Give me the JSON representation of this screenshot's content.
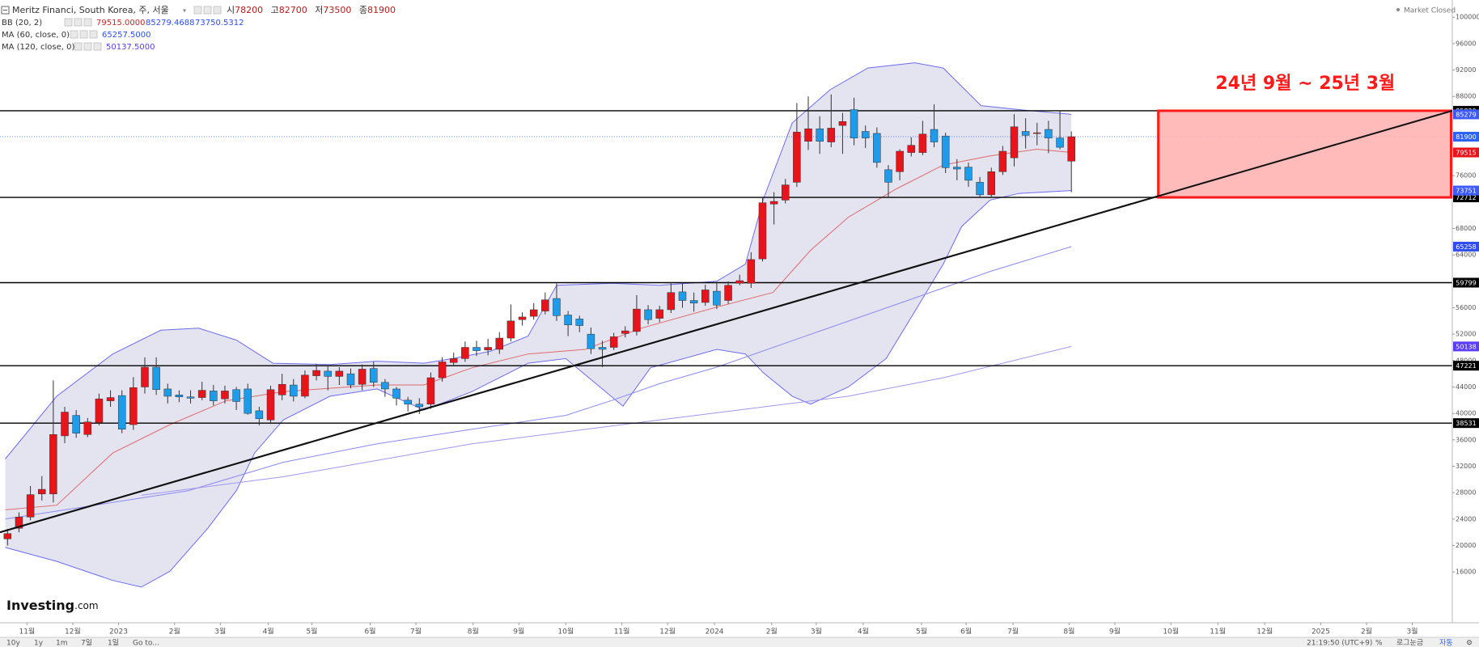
{
  "chart_data": {
    "type": "candlestick",
    "title": "Meritz Financi, South Korea, 주, 서울",
    "ohlc_prefixes": [
      "시",
      "고",
      "저",
      "종"
    ],
    "status": "Market Closed",
    "indicators": [
      {
        "label": "BB (20, 2)",
        "readouts": [
          {
            "value": 79515,
            "label": "79515.0000"
          },
          {
            "value": 85279.4688,
            "label": "85279.4688"
          },
          {
            "value": 73750.5312,
            "label": "73750.5312"
          }
        ]
      },
      {
        "label": "MA (60, close, 0)",
        "readouts": [
          {
            "value": 65257.5,
            "label": "65257.5000"
          }
        ]
      },
      {
        "label": "MA (120, close, 0)",
        "readouts": [
          {
            "value": 50137.5,
            "label": "50137.5000"
          }
        ]
      }
    ],
    "up_color": "#e8141b",
    "down_color": "#1e9be9",
    "x": [
      0,
      1,
      2,
      3,
      4,
      5,
      6,
      7,
      8,
      9,
      10,
      11,
      12,
      13,
      14,
      15,
      16,
      17,
      18,
      19,
      20,
      21,
      22,
      23,
      24,
      25,
      26,
      27,
      28,
      29,
      30,
      31,
      32,
      33,
      34,
      35,
      36,
      37,
      38,
      39,
      40,
      41,
      42,
      43,
      44,
      45,
      46,
      47,
      48,
      49,
      50,
      51,
      52,
      53,
      54,
      55,
      56,
      57,
      58,
      59,
      60,
      61,
      62,
      63,
      64,
      65,
      66,
      67,
      68,
      69,
      70,
      71,
      72,
      73,
      74,
      75,
      76,
      77,
      78,
      79,
      80,
      81,
      82,
      83,
      84,
      85,
      86,
      87,
      88,
      89,
      90,
      91,
      92,
      93
    ],
    "open": [
      21000,
      22600,
      24300,
      27800,
      27800,
      36600,
      39700,
      36800,
      38600,
      41900,
      42700,
      38300,
      44000,
      47000,
      43700,
      42800,
      42500,
      42400,
      43400,
      42200,
      43600,
      43700,
      40400,
      39000,
      42800,
      44300,
      42600,
      45700,
      46400,
      45600,
      46000,
      44400,
      46800,
      44700,
      43700,
      42000,
      41400,
      41400,
      45400,
      47700,
      48300,
      50000,
      49600,
      49700,
      51400,
      54200,
      54700,
      55500,
      57400,
      54900,
      54300,
      52000,
      50000,
      50000,
      52100,
      52400,
      55700,
      54400,
      55700,
      58400,
      57100,
      56800,
      58500,
      57100,
      59700,
      59700,
      63400,
      71700,
      72300,
      75000,
      81200,
      83100,
      81100,
      83600,
      86000,
      82700,
      82400,
      76900,
      76600,
      79500,
      79500,
      83000,
      82000,
      77300,
      77300,
      75000,
      73100,
      76600,
      78700,
      82700,
      82400,
      83000,
      81700,
      78200
    ],
    "high": [
      22500,
      25000,
      29000,
      30500,
      45000,
      41000,
      40500,
      39300,
      43000,
      43500,
      43500,
      45500,
      48500,
      48500,
      44500,
      43500,
      43500,
      44800,
      44300,
      44200,
      44000,
      44500,
      41000,
      44200,
      46000,
      45200,
      46500,
      47500,
      47300,
      47000,
      46800,
      47400,
      47800,
      45200,
      44000,
      42500,
      42300,
      46200,
      48500,
      49200,
      50900,
      51000,
      51300,
      52300,
      56500,
      55300,
      56700,
      58300,
      59700,
      55500,
      54800,
      53000,
      51000,
      52200,
      53200,
      57900,
      56400,
      56300,
      59700,
      59800,
      58300,
      59500,
      59700,
      60000,
      61000,
      64400,
      72700,
      73500,
      75500,
      87000,
      88000,
      85000,
      88300,
      85500,
      87800,
      83600,
      83300,
      77600,
      80000,
      81800,
      84300,
      86800,
      82500,
      78500,
      78000,
      75800,
      77200,
      80500,
      85300,
      84700,
      84000,
      84300,
      85800,
      82700
    ],
    "low": [
      20000,
      22000,
      23800,
      26800,
      26500,
      35500,
      36300,
      36400,
      38200,
      41000,
      37000,
      37500,
      43000,
      42800,
      41500,
      41700,
      41500,
      42000,
      41200,
      41500,
      40500,
      39800,
      38200,
      38400,
      42000,
      41800,
      42300,
      45000,
      43500,
      44300,
      43800,
      43500,
      44000,
      42500,
      41200,
      40300,
      39900,
      40700,
      44800,
      47200,
      47800,
      48700,
      48800,
      49000,
      50900,
      53300,
      54200,
      55000,
      54000,
      51700,
      52300,
      49000,
      47000,
      49600,
      51500,
      51800,
      53500,
      53800,
      55200,
      56000,
      55400,
      56300,
      55800,
      56600,
      59400,
      59000,
      63000,
      68600,
      71800,
      74300,
      79900,
      79300,
      80300,
      79300,
      80600,
      80200,
      77200,
      72700,
      75300,
      78900,
      79100,
      80300,
      76400,
      75300,
      74300,
      72700,
      72700,
      76100,
      77400,
      80100,
      80600,
      79400,
      80000,
      73500
    ],
    "close": [
      21800,
      24300,
      27700,
      28500,
      36800,
      40200,
      37000,
      38700,
      42200,
      42400,
      37600,
      43900,
      47000,
      43600,
      42600,
      42500,
      42300,
      43500,
      41900,
      43400,
      41800,
      40000,
      39200,
      43600,
      44400,
      42600,
      45800,
      46500,
      45600,
      46400,
      44300,
      46700,
      44700,
      43700,
      42300,
      41400,
      41000,
      45400,
      47800,
      48300,
      50000,
      49500,
      50000,
      51400,
      54000,
      54600,
      55700,
      57200,
      54800,
      53400,
      53300,
      49800,
      49700,
      51600,
      52500,
      55800,
      54200,
      55700,
      58300,
      57100,
      56700,
      58700,
      56400,
      59400,
      60100,
      63300,
      71900,
      72100,
      74600,
      82600,
      83100,
      81200,
      83200,
      84200,
      81700,
      81700,
      78000,
      75000,
      79700,
      80600,
      82300,
      81100,
      77200,
      77000,
      75300,
      73100,
      76600,
      79700,
      83400,
      82100,
      82500,
      81700,
      80300,
      81900
    ],
    "bb": {
      "fill": "#e4e4f1",
      "upper": {
        "color": "#6c6cf0",
        "tag_color": "#3d5afe",
        "x": [
          -0.2,
          4.3,
          9.2,
          13.4,
          16.7,
          20.0,
          23.2,
          28.2,
          32.3,
          36.4,
          38.9,
          42.2,
          45.5,
          48.0,
          52.9,
          57.0,
          62.0,
          64.5,
          66.1,
          68.6,
          71.9,
          75.2,
          79.3,
          81.8,
          85.1,
          88.4,
          93
        ],
        "values": [
          33100,
          42600,
          49000,
          52600,
          52900,
          51100,
          47600,
          47400,
          47900,
          47600,
          48300,
          49400,
          51700,
          59400,
          59700,
          59400,
          60000,
          62600,
          72600,
          84000,
          89000,
          92300,
          93100,
          92300,
          86600,
          86000,
          85279
        ]
      },
      "basis": {
        "color": "#e06a6a",
        "tag_color": "#e8141b",
        "x": [
          -0.2,
          4.3,
          9.2,
          14.2,
          19.1,
          24.1,
          32.3,
          36.4,
          40.6,
          45.5,
          50.5,
          55.4,
          62.0,
          66.9,
          70.2,
          73.5,
          77.7,
          81.8,
          85.9,
          90.0,
          93
        ],
        "values": [
          25400,
          26100,
          34000,
          38300,
          41900,
          43300,
          44300,
          44300,
          46900,
          49000,
          49700,
          52900,
          56100,
          58300,
          64700,
          69700,
          74000,
          77600,
          79000,
          80000,
          79515
        ]
      },
      "lower": {
        "color": "#6c6cf0",
        "tag_color": "#3d5afe",
        "x": [
          -0.2,
          4.3,
          9.2,
          11.7,
          14.2,
          17.5,
          20.0,
          21.6,
          24.1,
          28.2,
          32.3,
          36.4,
          40.6,
          45.5,
          48.8,
          53.8,
          56.2,
          62.0,
          64.5,
          66.1,
          68.6,
          70.2,
          73.5,
          76.8,
          79.3,
          81.8,
          83.4,
          85.9,
          88.4,
          93
        ],
        "values": [
          19700,
          17600,
          14700,
          13700,
          16100,
          22600,
          28300,
          34000,
          39000,
          42600,
          43700,
          40500,
          43300,
          47600,
          48300,
          41100,
          46900,
          49700,
          49000,
          46100,
          42600,
          41400,
          44000,
          48300,
          55400,
          62600,
          68300,
          72300,
          73300,
          73751
        ]
      }
    },
    "ma60": {
      "color": "#8a8af2",
      "tag_color": "#2f4cf5",
      "x": [
        -0.2,
        7.6,
        15.8,
        24.1,
        32.3,
        40.6,
        48.8,
        52.9,
        57.0,
        62.0,
        69.4,
        77.7,
        85.9,
        93
      ],
      "values": [
        24000,
        26100,
        28300,
        32600,
        35400,
        37600,
        39700,
        42000,
        44500,
        47000,
        51500,
        56500,
        61500,
        65258
      ]
    },
    "ma120": {
      "color": "#a196f0",
      "tag_color": "#5b3df5",
      "x": [
        11.7,
        24.1,
        40.6,
        57.0,
        73.5,
        81.8,
        93
      ],
      "values": [
        27600,
        30400,
        35400,
        39000,
        42600,
        45400,
        50138
      ]
    },
    "last_price_color": "#2962ff",
    "levels": [
      85829,
      72712,
      59799,
      47221,
      38531
    ],
    "level_color": "#000000",
    "trendline": {
      "x": [
        -0.66,
        126.3
      ],
      "y": [
        22000,
        85829
      ],
      "color": "#111111"
    },
    "annotation": {
      "text": "24년 9월 ~ 25년 3월",
      "x": [
        100.6,
        126.3
      ],
      "y": [
        72712,
        85829
      ],
      "color": "#ff1a1a",
      "fill": "#ffb3b3"
    },
    "xlim": [
      -0.66,
      126.3
    ],
    "ylim": [
      8300,
      102600
    ],
    "yticks": [
      16000,
      20000,
      24000,
      28000,
      32000,
      36000,
      40000,
      44000,
      48000,
      52000,
      56000,
      64000,
      68000,
      76000,
      88000,
      92000,
      96000,
      100000
    ],
    "xticks": [
      {
        "value": 1.7,
        "label": "11월"
      },
      {
        "value": 5.7,
        "label": "12월"
      },
      {
        "value": 9.7,
        "label": "2023"
      },
      {
        "value": 14.6,
        "label": "2월"
      },
      {
        "value": 18.6,
        "label": "3월"
      },
      {
        "value": 22.8,
        "label": "4월"
      },
      {
        "value": 26.6,
        "label": "5월"
      },
      {
        "value": 31.7,
        "label": "6월"
      },
      {
        "value": 35.7,
        "label": "7월"
      },
      {
        "value": 40.7,
        "label": "8월"
      },
      {
        "value": 44.7,
        "label": "9월"
      },
      {
        "value": 48.8,
        "label": "10월"
      },
      {
        "value": 53.7,
        "label": "11월"
      },
      {
        "value": 57.7,
        "label": "12월"
      },
      {
        "value": 61.8,
        "label": "2024"
      },
      {
        "value": 66.8,
        "label": "2월"
      },
      {
        "value": 70.7,
        "label": "3월"
      },
      {
        "value": 74.8,
        "label": "4월"
      },
      {
        "value": 79.9,
        "label": "5월"
      },
      {
        "value": 83.8,
        "label": "6월"
      },
      {
        "value": 87.9,
        "label": "7월"
      },
      {
        "value": 92.8,
        "label": "8월"
      },
      {
        "value": 96.8,
        "label": "9월"
      },
      {
        "value": 101.7,
        "label": "10월"
      },
      {
        "value": 105.8,
        "label": "11월"
      },
      {
        "value": 109.9,
        "label": "12월"
      },
      {
        "value": 114.8,
        "label": "2025"
      },
      {
        "value": 118.8,
        "label": "2월"
      },
      {
        "value": 122.8,
        "label": "3월"
      }
    ]
  },
  "logo": {
    "brand": "Investing",
    "suffix": ".com"
  },
  "toolbar": {
    "ranges": [
      "10y",
      "1y",
      "1m",
      "7일",
      "1일"
    ],
    "goto": "Go to...",
    "clock": "21:19:50 (UTC+9)",
    "options": [
      "%",
      "로그눈금",
      "자동"
    ]
  }
}
